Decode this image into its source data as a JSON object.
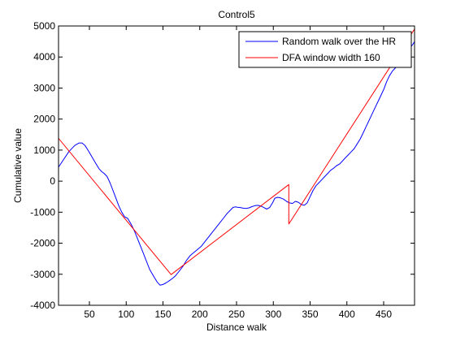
{
  "chart_data": {
    "type": "line",
    "title": "Control5",
    "xlabel": "Distance walk",
    "ylabel": "Cumulative value",
    "xlim": [
      8,
      492
    ],
    "ylim": [
      -4000,
      5000
    ],
    "xticks": [
      50,
      100,
      150,
      200,
      250,
      300,
      350,
      400,
      450
    ],
    "yticks": [
      -4000,
      -3000,
      -2000,
      -1000,
      0,
      1000,
      2000,
      3000,
      4000,
      5000
    ],
    "grid": false,
    "legend_position": "top-right",
    "series": [
      {
        "name": "Random walk over the HR",
        "color": "#0000ff",
        "x": [
          8,
          15,
          22,
          30,
          36,
          40,
          44,
          48,
          53,
          58,
          63,
          67,
          70,
          74,
          78,
          82,
          86,
          90,
          94,
          98,
          102,
          107,
          112,
          117,
          122,
          127,
          132,
          137,
          142,
          146,
          150,
          154,
          158,
          162,
          167,
          172,
          177,
          182,
          187,
          192,
          197,
          202,
          207,
          212,
          217,
          222,
          227,
          232,
          237,
          241,
          245,
          248,
          251,
          255,
          259,
          263,
          267,
          271,
          275,
          279,
          283,
          287,
          291,
          295,
          299,
          302,
          306,
          310,
          314,
          318,
          322,
          326,
          330,
          334,
          338,
          342,
          346,
          350,
          354,
          358,
          362,
          366,
          370,
          374,
          378,
          382,
          386,
          390,
          394,
          398,
          402,
          406,
          410,
          414,
          418,
          422,
          426,
          430,
          434,
          438,
          442,
          446,
          450,
          454,
          458,
          462,
          466,
          470,
          474,
          478,
          482,
          486,
          490,
          492
        ],
        "y": [
          450,
          700,
          950,
          1150,
          1230,
          1230,
          1150,
          1000,
          800,
          600,
          400,
          300,
          250,
          150,
          -50,
          -300,
          -550,
          -800,
          -1000,
          -1150,
          -1200,
          -1400,
          -1650,
          -1950,
          -2250,
          -2550,
          -2850,
          -3050,
          -3250,
          -3350,
          -3330,
          -3280,
          -3220,
          -3150,
          -3050,
          -2900,
          -2750,
          -2550,
          -2400,
          -2300,
          -2200,
          -2100,
          -1950,
          -1800,
          -1650,
          -1500,
          -1350,
          -1200,
          -1050,
          -950,
          -850,
          -830,
          -840,
          -850,
          -870,
          -880,
          -860,
          -820,
          -790,
          -780,
          -800,
          -850,
          -900,
          -850,
          -700,
          -550,
          -520,
          -540,
          -580,
          -650,
          -700,
          -720,
          -650,
          -680,
          -750,
          -780,
          -700,
          -500,
          -300,
          -150,
          -50,
          50,
          150,
          250,
          350,
          420,
          500,
          550,
          650,
          750,
          850,
          950,
          1050,
          1200,
          1350,
          1550,
          1750,
          1950,
          2150,
          2350,
          2550,
          2750,
          2950,
          3200,
          3400,
          3550,
          3650,
          3750,
          3850,
          4000,
          4150,
          4300,
          4420,
          4500
        ]
      },
      {
        "name": "DFA window width 160",
        "color": "#ff0000",
        "x": [
          8,
          161,
          161,
          321,
          321,
          492
        ],
        "y": [
          1380,
          -3010,
          -3010,
          -110,
          -1380,
          4900
        ]
      }
    ]
  }
}
